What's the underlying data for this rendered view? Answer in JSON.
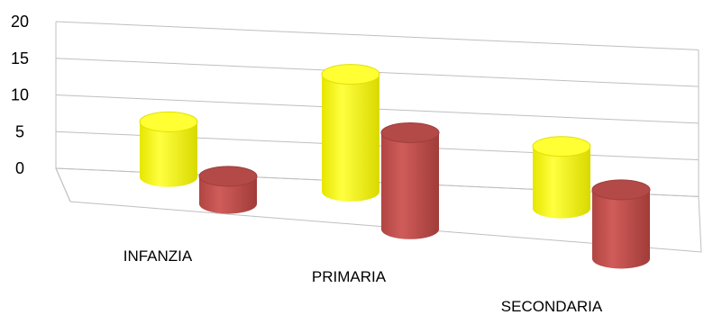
{
  "chart_data": {
    "type": "bar",
    "style": "3d-cylinder",
    "categories": [
      "INFANZIA",
      "PRIMARIA",
      "SECONDARIA"
    ],
    "series": [
      {
        "values": [
          8,
          17,
          9
        ],
        "color": "#ffff00"
      },
      {
        "values": [
          4,
          14,
          10
        ],
        "color": "#c0504d"
      }
    ],
    "ylim": [
      0,
      20
    ],
    "yticks": [
      "0",
      "5",
      "10",
      "15",
      "20"
    ],
    "grid": true,
    "legend": "none"
  }
}
